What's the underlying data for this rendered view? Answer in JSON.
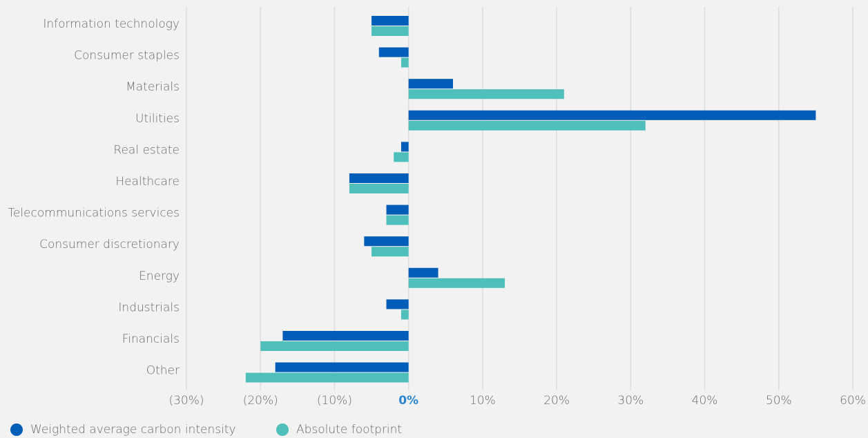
{
  "chart_data": {
    "type": "barh",
    "categories": [
      "Information technology",
      "Consumer staples",
      "Materials",
      "Utilities",
      "Real estate",
      "Healthcare",
      "Telecommunications services",
      "Consumer discretionary",
      "Energy",
      "Industrials",
      "Financials",
      "Other"
    ],
    "series": [
      {
        "name": "Weighted average carbon intensity",
        "color": "#005eb8",
        "values": [
          -5,
          -4,
          6,
          55,
          -1,
          -8,
          -3,
          -6,
          4,
          -3,
          -17,
          -18
        ]
      },
      {
        "name": "Absolute footprint",
        "color": "#4fbfbb",
        "values": [
          -5,
          -1,
          21,
          32,
          -2,
          -8,
          -3,
          -5,
          13,
          -1,
          -20,
          -22
        ]
      }
    ],
    "xlim": [
      -30,
      60
    ],
    "xticks": [
      {
        "value": -30,
        "label": "(30%)"
      },
      {
        "value": -20,
        "label": "(20%)"
      },
      {
        "value": -10,
        "label": "(10%)"
      },
      {
        "value": 0,
        "label": "0%"
      },
      {
        "value": 10,
        "label": "10%"
      },
      {
        "value": 20,
        "label": "20%"
      },
      {
        "value": 30,
        "label": "30%"
      },
      {
        "value": 40,
        "label": "40%"
      },
      {
        "value": 50,
        "label": "50%"
      },
      {
        "value": 60,
        "label": "60%"
      }
    ],
    "grid": true,
    "legend": "bottom-left"
  }
}
